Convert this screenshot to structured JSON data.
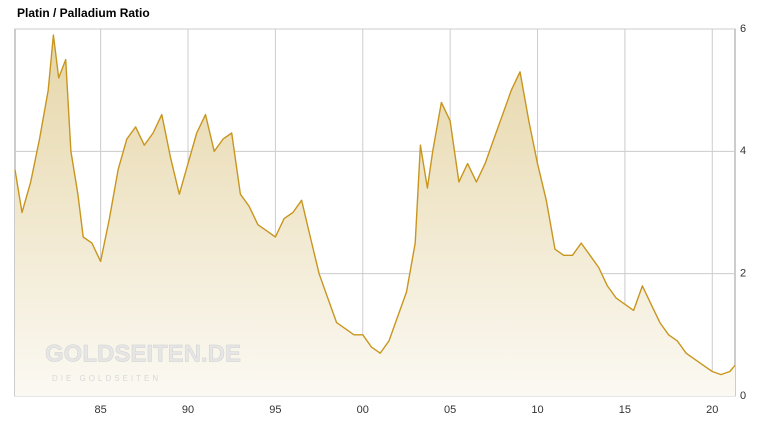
{
  "chart_data": {
    "type": "area",
    "title": "Platin / Palladium Ratio",
    "watermark": "GOLDSEITEN.DE",
    "watermark_sub": "DIE GOLDSEITEN",
    "color": "#c8961e",
    "grid": true,
    "x": [
      1980.1,
      1980.5,
      1981,
      1981.5,
      1982,
      1982.3,
      1982.6,
      1983,
      1983.3,
      1983.7,
      1984,
      1984.5,
      1985,
      1985.5,
      1986,
      1986.5,
      1987,
      1987.5,
      1988,
      1988.5,
      1989,
      1989.5,
      1990,
      1990.5,
      1991,
      1991.5,
      1992,
      1992.5,
      1993,
      1993.5,
      1994,
      1994.5,
      1995,
      1995.5,
      1996,
      1996.5,
      1997,
      1997.5,
      1998,
      1998.5,
      1999,
      1999.5,
      2000,
      2000.5,
      2001,
      2001.5,
      2002,
      2002.5,
      2003,
      2003.3,
      2003.7,
      2004,
      2004.5,
      2005,
      2005.5,
      2006,
      2006.5,
      2007,
      2007.5,
      2008,
      2008.5,
      2009,
      2009.5,
      2010,
      2010.5,
      2011,
      2011.5,
      2012,
      2012.5,
      2013,
      2013.5,
      2014,
      2014.5,
      2015,
      2015.5,
      2016,
      2016.5,
      2017,
      2017.5,
      2018,
      2018.5,
      2019,
      2019.5,
      2020,
      2020.5,
      2021,
      2021.3
    ],
    "values": [
      3.7,
      3.0,
      3.5,
      4.2,
      5.0,
      5.9,
      5.2,
      5.5,
      4.0,
      3.3,
      2.6,
      2.5,
      2.2,
      2.9,
      3.7,
      4.2,
      4.4,
      4.1,
      4.3,
      4.6,
      3.9,
      3.3,
      3.8,
      4.3,
      4.6,
      4.0,
      4.2,
      4.3,
      3.3,
      3.1,
      2.8,
      2.7,
      2.6,
      2.9,
      3.0,
      3.2,
      2.6,
      2.0,
      1.6,
      1.2,
      1.1,
      1.0,
      1.0,
      0.8,
      0.7,
      0.9,
      1.3,
      1.7,
      2.5,
      4.1,
      3.4,
      4.0,
      4.8,
      4.5,
      3.5,
      3.8,
      3.5,
      3.8,
      4.2,
      4.6,
      5.0,
      5.3,
      4.5,
      3.8,
      3.2,
      2.4,
      2.3,
      2.3,
      2.5,
      2.3,
      2.1,
      1.8,
      1.6,
      1.5,
      1.4,
      1.8,
      1.5,
      1.2,
      1.0,
      0.9,
      0.7,
      0.6,
      0.5,
      0.4,
      0.35,
      0.4,
      0.5
    ],
    "xlim": [
      1980.1,
      2021.3
    ],
    "xticks": [
      {
        "value": 1985,
        "label": "85"
      },
      {
        "value": 1990,
        "label": "90"
      },
      {
        "value": 1995,
        "label": "95"
      },
      {
        "value": 2000,
        "label": "00"
      },
      {
        "value": 2005,
        "label": "05"
      },
      {
        "value": 2010,
        "label": "10"
      },
      {
        "value": 2015,
        "label": "15"
      },
      {
        "value": 2020,
        "label": "20"
      }
    ],
    "ylim": [
      0,
      6
    ],
    "yticks": [
      0,
      2,
      4,
      6
    ]
  }
}
